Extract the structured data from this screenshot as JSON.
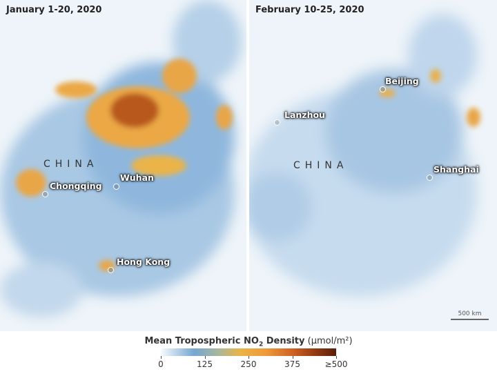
{
  "panels": [
    {
      "title": "January 1-20, 2020",
      "country": "CHINA",
      "cities": [
        "Chongqing",
        "Wuhan",
        "Hong Kong"
      ]
    },
    {
      "title": "February 10-25, 2020",
      "country": "CHINA",
      "cities": [
        "Beijing",
        "Lanzhou",
        "Shanghai"
      ]
    }
  ],
  "scale_bar": "500 km",
  "legend": {
    "title_main": "Mean Tropospheric NO",
    "title_sub": "2",
    "title_rest": " Density",
    "unit": "(µmol/m²)",
    "ticks": [
      "0",
      "125",
      "250",
      "375",
      "≥500"
    ],
    "colors": [
      "#f7fafd",
      "#76a6d2",
      "#eab448",
      "#cf6324",
      "#5a1f07"
    ]
  }
}
